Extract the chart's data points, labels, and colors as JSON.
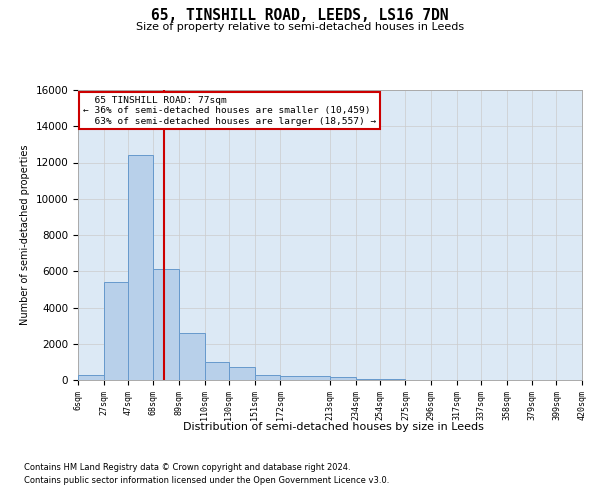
{
  "title": "65, TINSHILL ROAD, LEEDS, LS16 7DN",
  "subtitle": "Size of property relative to semi-detached houses in Leeds",
  "xlabel": "Distribution of semi-detached houses by size in Leeds",
  "ylabel": "Number of semi-detached properties",
  "property_label": "65 TINSHILL ROAD: 77sqm",
  "smaller_pct": 36,
  "smaller_count": "10,459",
  "larger_pct": 63,
  "larger_count": "18,557",
  "bin_edges": [
    6,
    27,
    47,
    68,
    89,
    110,
    130,
    151,
    172,
    213,
    234,
    254,
    275,
    296,
    317,
    337,
    358,
    379,
    399,
    420
  ],
  "bar_heights": [
    300,
    5400,
    12400,
    6100,
    2600,
    1000,
    700,
    300,
    200,
    150,
    50,
    50,
    0,
    0,
    0,
    0,
    0,
    0,
    0
  ],
  "bar_color": "#b8d0ea",
  "bar_edge_color": "#6699cc",
  "vline_color": "#cc0000",
  "vline_x": 77,
  "annotation_box_color": "#cc0000",
  "ylim": [
    0,
    16000
  ],
  "yticks": [
    0,
    2000,
    4000,
    6000,
    8000,
    10000,
    12000,
    14000,
    16000
  ],
  "grid_color": "#cccccc",
  "bg_color": "#dce9f5",
  "footer_line1": "Contains HM Land Registry data © Crown copyright and database right 2024.",
  "footer_line2": "Contains public sector information licensed under the Open Government Licence v3.0."
}
